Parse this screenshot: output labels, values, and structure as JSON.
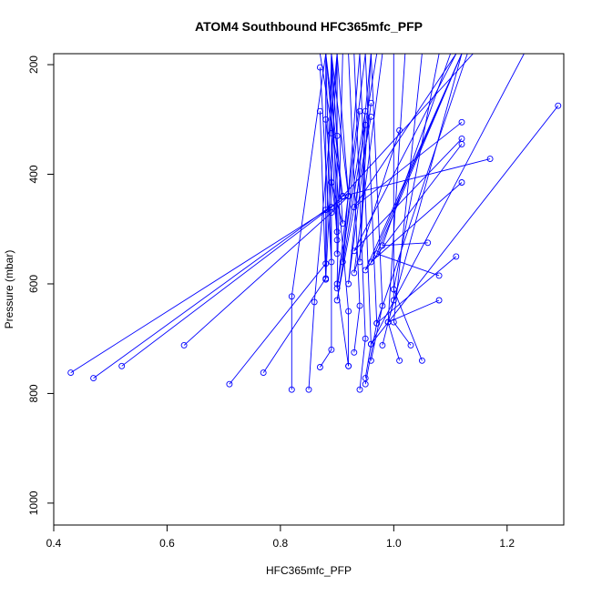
{
  "chart_data": {
    "type": "line",
    "title": "ATOM4 Southbound HFC365mfc_PFP",
    "xlabel": "HFC365mfc_PFP",
    "ylabel": "Pressure (mbar)",
    "xlim": [
      0.4,
      1.3
    ],
    "ylim": [
      1040,
      180
    ],
    "y_axis_reversed": true,
    "x_ticks": [
      "0.4",
      "0.6",
      "0.8",
      "1.0",
      "1.2"
    ],
    "y_ticks": [
      "200",
      "400",
      "600",
      "800",
      "1000"
    ],
    "grid": false,
    "legend": "none",
    "line_color": "#0000ff",
    "marker": "open-circle",
    "series": [
      {
        "values": [
          [
            0.43,
            762
          ],
          [
            0.89,
            460
          ],
          [
            0.91,
            440
          ],
          [
            0.88,
            180
          ]
        ]
      },
      {
        "values": [
          [
            0.47,
            772
          ],
          [
            0.88,
            465
          ],
          [
            0.92,
            440
          ],
          [
            0.9,
            180
          ]
        ]
      },
      {
        "values": [
          [
            0.52,
            750
          ],
          [
            0.89,
            460
          ],
          [
            0.91,
            440
          ],
          [
            0.87,
            180
          ]
        ]
      },
      {
        "values": [
          [
            0.63,
            712
          ],
          [
            0.89,
            470
          ],
          [
            0.92,
            440
          ],
          [
            0.89,
            180
          ]
        ]
      },
      {
        "values": [
          [
            0.71,
            783
          ],
          [
            0.88,
            563
          ],
          [
            0.89,
            180
          ]
        ]
      },
      {
        "values": [
          [
            0.77,
            762
          ],
          [
            0.88,
            590
          ],
          [
            0.9,
            180
          ]
        ]
      },
      {
        "values": [
          [
            0.82,
            793
          ],
          [
            0.82,
            623
          ],
          [
            0.88,
            180
          ]
        ]
      },
      {
        "values": [
          [
            0.85,
            793
          ],
          [
            0.86,
            633
          ],
          [
            0.9,
            180
          ]
        ]
      },
      {
        "values": [
          [
            0.87,
            752
          ],
          [
            0.89,
            720
          ],
          [
            0.89,
            180
          ]
        ]
      },
      {
        "values": [
          [
            0.92,
            750
          ],
          [
            0.92,
            650
          ],
          [
            0.88,
            180
          ]
        ]
      },
      {
        "values": [
          [
            0.92,
            750
          ],
          [
            0.9,
            600
          ],
          [
            0.91,
            180
          ]
        ]
      },
      {
        "values": [
          [
            0.93,
            725
          ],
          [
            0.94,
            640
          ],
          [
            0.92,
            180
          ]
        ]
      },
      {
        "values": [
          [
            0.94,
            793
          ],
          [
            0.95,
            700
          ],
          [
            0.93,
            180
          ]
        ]
      },
      {
        "values": [
          [
            0.95,
            772
          ],
          [
            0.96,
            710
          ],
          [
            0.94,
            180
          ]
        ]
      },
      {
        "values": [
          [
            0.95,
            783
          ],
          [
            0.97,
            672
          ],
          [
            0.95,
            180
          ]
        ]
      },
      {
        "values": [
          [
            0.96,
            740
          ],
          [
            0.98,
            640
          ],
          [
            0.96,
            180
          ]
        ]
      },
      {
        "values": [
          [
            0.98,
            712
          ],
          [
            1.0,
            630
          ],
          [
            1.0,
            180
          ]
        ]
      },
      {
        "values": [
          [
            1.01,
            740
          ],
          [
            0.99,
            670
          ],
          [
            1.02,
            180
          ]
        ]
      },
      {
        "values": [
          [
            1.03,
            712
          ],
          [
            1.0,
            670
          ],
          [
            1.05,
            180
          ]
        ]
      },
      {
        "values": [
          [
            1.05,
            740
          ],
          [
            1.0,
            610
          ],
          [
            1.08,
            180
          ]
        ]
      },
      {
        "values": [
          [
            1.06,
            525
          ],
          [
            0.98,
            530
          ],
          [
            1.1,
            180
          ]
        ]
      },
      {
        "values": [
          [
            1.08,
            585
          ],
          [
            0.97,
            545
          ],
          [
            1.12,
            180
          ]
        ]
      },
      {
        "values": [
          [
            1.08,
            630
          ],
          [
            0.99,
            670
          ],
          [
            1.12,
            180
          ]
        ]
      },
      {
        "values": [
          [
            1.12,
            415
          ],
          [
            0.96,
            560
          ],
          [
            1.12,
            180
          ]
        ]
      },
      {
        "values": [
          [
            1.12,
            345
          ],
          [
            0.95,
            575
          ],
          [
            1.12,
            180
          ]
        ]
      },
      {
        "values": [
          [
            1.12,
            335
          ],
          [
            0.93,
            540
          ],
          [
            1.11,
            180
          ]
        ]
      },
      {
        "values": [
          [
            1.12,
            305
          ],
          [
            0.93,
            460
          ],
          [
            1.11,
            180
          ]
        ]
      },
      {
        "values": [
          [
            1.11,
            550
          ],
          [
            0.97,
            672
          ],
          [
            1.13,
            180
          ]
        ]
      },
      {
        "values": [
          [
            1.17,
            372
          ],
          [
            0.91,
            440
          ],
          [
            1.14,
            180
          ]
        ]
      },
      {
        "values": [
          [
            1.29,
            275
          ],
          [
            0.96,
            710
          ],
          [
            1.23,
            180
          ]
        ]
      },
      {
        "values": [
          [
            1.01,
            320
          ],
          [
            0.93,
            580
          ],
          [
            0.98,
            180
          ]
        ]
      },
      {
        "values": [
          [
            0.96,
            270
          ],
          [
            0.92,
            600
          ],
          [
            0.96,
            180
          ]
        ]
      },
      {
        "values": [
          [
            0.96,
            295
          ],
          [
            0.9,
            630
          ],
          [
            0.97,
            180
          ]
        ]
      },
      {
        "values": [
          [
            0.87,
            285
          ],
          [
            0.88,
            592
          ],
          [
            0.88,
            180
          ]
        ]
      },
      {
        "values": [
          [
            0.87,
            205
          ],
          [
            0.89,
            560
          ],
          [
            0.88,
            180
          ]
        ]
      },
      {
        "values": [
          [
            0.88,
            300
          ],
          [
            0.9,
            505
          ],
          [
            0.89,
            180
          ]
        ]
      },
      {
        "values": [
          [
            0.89,
            325
          ],
          [
            0.9,
            520
          ],
          [
            0.9,
            180
          ]
        ]
      },
      {
        "values": [
          [
            0.9,
            330
          ],
          [
            0.9,
            545
          ],
          [
            0.9,
            180
          ]
        ]
      },
      {
        "values": [
          [
            0.89,
            415
          ],
          [
            0.91,
            490
          ],
          [
            0.89,
            180
          ]
        ]
      },
      {
        "values": [
          [
            0.94,
            285
          ],
          [
            0.91,
            560
          ],
          [
            0.94,
            180
          ]
        ]
      },
      {
        "values": [
          [
            0.95,
            285
          ],
          [
            0.9,
            608
          ],
          [
            0.95,
            180
          ]
        ]
      },
      {
        "values": [
          [
            0.95,
            310
          ],
          [
            0.94,
            560
          ],
          [
            0.96,
            180
          ]
        ]
      }
    ]
  }
}
